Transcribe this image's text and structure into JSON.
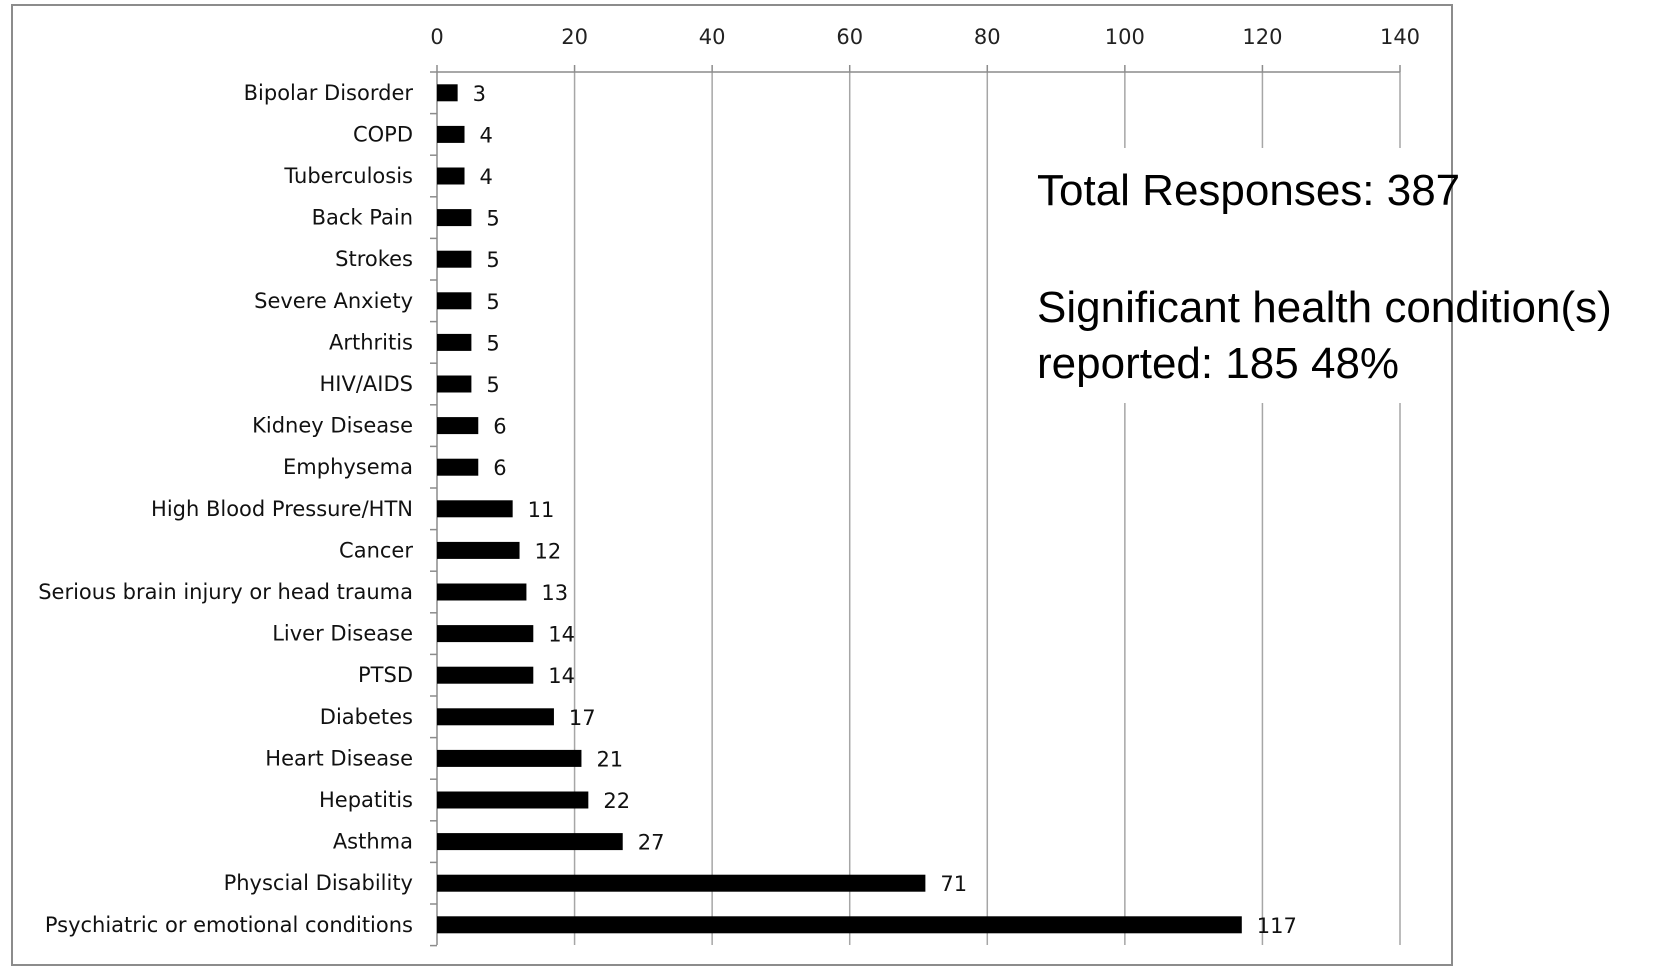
{
  "chart_data": {
    "type": "bar",
    "orientation": "horizontal",
    "title": "",
    "xlabel": "",
    "ylabel": "",
    "categories": [
      "Bipolar Disorder",
      "COPD",
      "Tuberculosis",
      "Back Pain",
      "Strokes",
      "Severe Anxiety",
      "Arthritis",
      "HIV/AIDS",
      "Kidney Disease",
      "Emphysema",
      "High Blood Pressure/HTN",
      "Cancer",
      "Serious brain injury or head trauma",
      "Liver Disease",
      "PTSD",
      "Diabetes",
      "Heart Disease",
      "Hepatitis",
      "Asthma",
      "Physcial Disability",
      "Psychiatric or emotional conditions"
    ],
    "values": [
      3,
      4,
      4,
      5,
      5,
      5,
      5,
      5,
      6,
      6,
      11,
      12,
      13,
      14,
      14,
      17,
      21,
      22,
      27,
      71,
      117
    ],
    "data_labels": [
      "3",
      "4",
      "4",
      "5",
      "5",
      "5",
      "5",
      "5",
      "6",
      "6",
      "11",
      "12",
      "13",
      "14",
      "14",
      "17",
      "21",
      "22",
      "27",
      "71",
      "117"
    ],
    "xlim": [
      0,
      140
    ],
    "xticks": [
      0,
      20,
      40,
      60,
      80,
      100,
      120,
      140
    ],
    "x_axis_position": "top",
    "grid": true,
    "legend": false,
    "bar_color": "#000000",
    "grid_color": "#a6a6a6",
    "annotations": {
      "total_line": "Total Responses:  387",
      "condition_line1": "Significant health condition(s)",
      "condition_line2": "reported: 185  48%"
    }
  }
}
